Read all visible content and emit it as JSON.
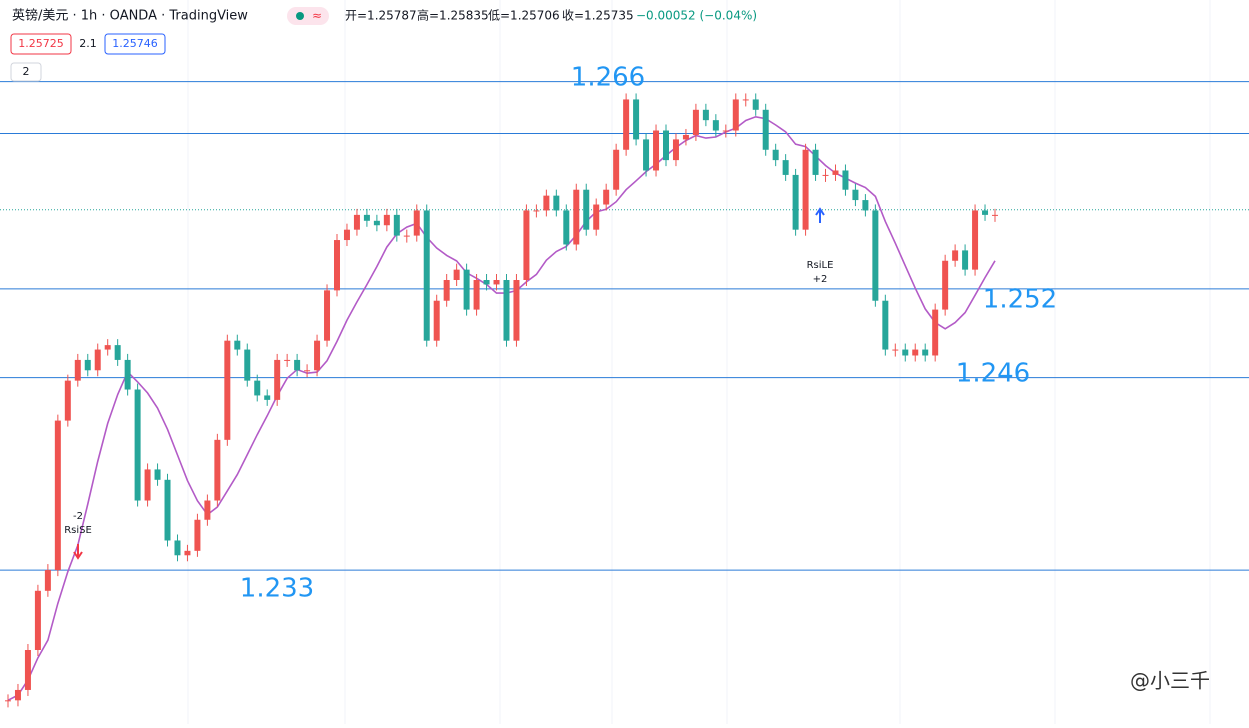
{
  "header": {
    "symbol": "英镑/美元 · 1h · OANDA · TradingView",
    "badge": "≈",
    "open": "开=1.25787",
    "high": "高=1.25835",
    "low": "低=1.25706",
    "close": "收=1.25735",
    "change": "−0.00052 (−0.04%)",
    "sell": "1.25725",
    "spread": "2.1",
    "buy": "1.25746",
    "indicator": "2"
  },
  "chart_data": {
    "type": "candlestick",
    "values": [
      1.2242,
      1.2249,
      1.2276,
      1.2316,
      1.233,
      1.2431,
      1.2458,
      1.2472,
      1.2465,
      1.2479,
      1.2482,
      1.2472,
      1.2452,
      1.2377,
      1.2398,
      1.2391,
      1.235,
      1.234,
      1.2343,
      1.2364,
      1.2377,
      1.2418,
      1.2485,
      1.2479,
      1.2458,
      1.2448,
      1.2445,
      1.2472,
      1.2472,
      1.2465,
      1.2465,
      1.2485,
      1.2519,
      1.2553,
      1.256,
      1.257,
      1.2566,
      1.2563,
      1.257,
      1.2556,
      1.2556,
      1.2573,
      1.2485,
      1.2512,
      1.2526,
      1.2533,
      1.2506,
      1.2526,
      1.2523,
      1.2526,
      1.2485,
      1.2526,
      1.2573,
      1.2573,
      1.2583,
      1.2573,
      1.255,
      1.2587,
      1.256,
      1.2577,
      1.2587,
      1.2614,
      1.2648,
      1.2621,
      1.26,
      1.2627,
      1.2607,
      1.2621,
      1.2624,
      1.2641,
      1.2634,
      1.2627,
      1.2627,
      1.2648,
      1.2648,
      1.2641,
      1.2614,
      1.2607,
      1.2597,
      1.256,
      1.2614,
      1.2597,
      1.2597,
      1.26,
      1.2587,
      1.258,
      1.2573,
      1.2512,
      1.2479,
      1.2479,
      1.2475,
      1.2479,
      1.2475,
      1.2506,
      1.2539,
      1.2546,
      1.2533,
      1.2573,
      1.257,
      1.257
    ],
    "up_color": "#ef5350",
    "down_color": "#26a69a",
    "ma_color": "#b35bc7",
    "ylim": [
      1.2226,
      1.2676
    ],
    "levels": [
      1.266,
      1.252,
      1.246,
      1.233
    ],
    "extra_levels": [
      1.2625
    ],
    "level_color": "#2a7bd8",
    "last_price": 1.25735,
    "signals": [
      {
        "label": "RsiSE",
        "qty": "-2",
        "color": "#f23645"
      },
      {
        "label": "RsiLE",
        "qty": "+2",
        "color": "#2962ff"
      }
    ]
  },
  "watermark": "@小三千"
}
